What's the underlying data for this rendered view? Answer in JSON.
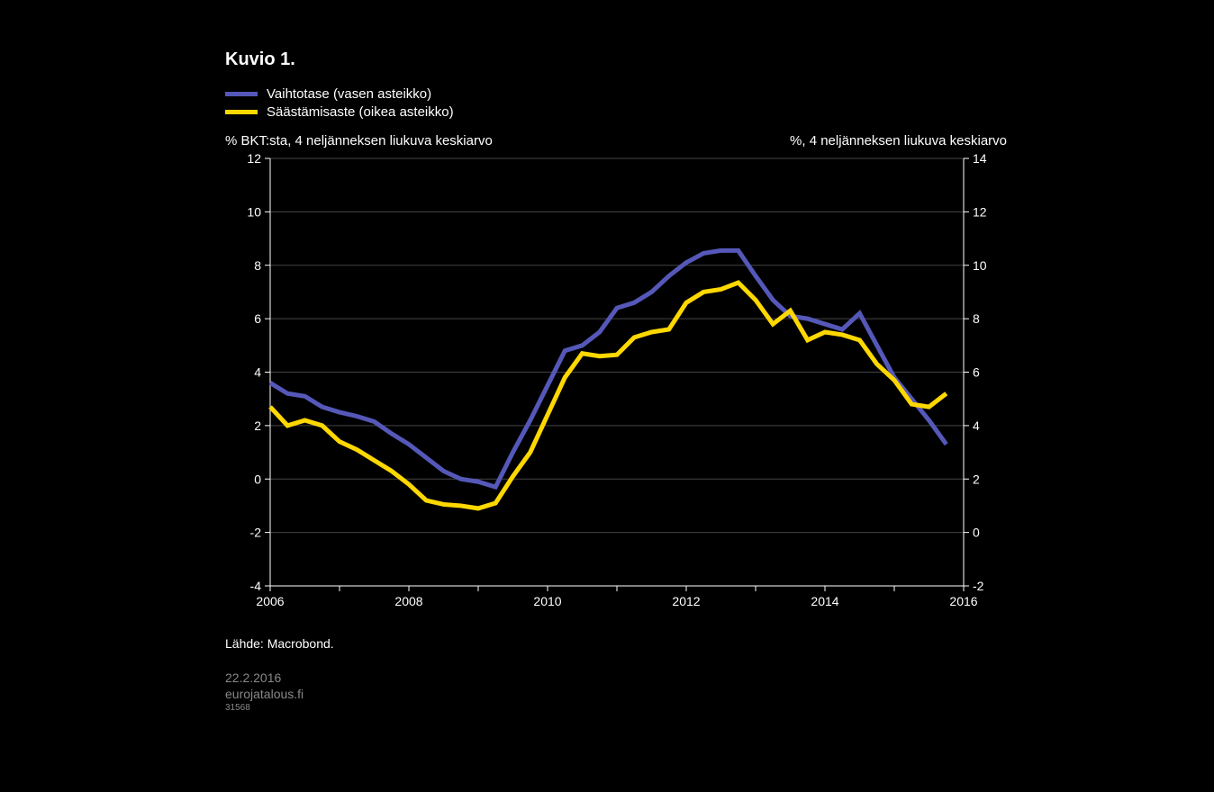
{
  "chart": {
    "type": "line",
    "title": "Kuvio 1.",
    "background_color": "#000000",
    "text_color": "#ffffff",
    "grid_color": "#444444",
    "legend": {
      "items": [
        {
          "label": "Vaihtotase (vasen asteikko)",
          "color": "#5558b8"
        },
        {
          "label": "Säästämisaste (oikea asteikko)",
          "color": "#ffd800"
        }
      ]
    },
    "left_axis": {
      "title": "% BKT:sta, 4 neljänneksen liukuva keskiarvo",
      "min": -4,
      "max": 12,
      "tick_step": 2,
      "ticks": [
        -4,
        -2,
        0,
        2,
        4,
        6,
        8,
        10,
        12
      ]
    },
    "right_axis": {
      "title": "%, 4 neljänneksen liukuva keskiarvo",
      "min": -2,
      "max": 14,
      "tick_step": 2,
      "ticks": [
        -2,
        0,
        2,
        4,
        6,
        8,
        10,
        12,
        14
      ]
    },
    "x_axis": {
      "min": 0,
      "max": 40,
      "labels": [
        {
          "pos": 0,
          "text": "2006"
        },
        {
          "pos": 8,
          "text": "2008"
        },
        {
          "pos": 16,
          "text": "2010"
        },
        {
          "pos": 24,
          "text": "2012"
        },
        {
          "pos": 32,
          "text": "2014"
        },
        {
          "pos": 40,
          "text": "2016"
        }
      ],
      "year_ticks": [
        0,
        4,
        8,
        12,
        16,
        20,
        24,
        28,
        32,
        36,
        40
      ]
    },
    "series": [
      {
        "name": "Vaihtotase",
        "color": "#5558b8",
        "axis": "left",
        "stroke_width": 5,
        "data": [
          3.6,
          3.2,
          3.1,
          2.7,
          2.5,
          2.35,
          2.15,
          1.7,
          1.3,
          0.8,
          0.3,
          0.0,
          -0.1,
          -0.3,
          1.0,
          2.2,
          3.5,
          4.8,
          5.0,
          5.5,
          6.4,
          6.6,
          7.0,
          7.6,
          8.1,
          8.45,
          8.55,
          8.55,
          7.6,
          6.7,
          6.1,
          6.0,
          5.8,
          5.6,
          6.2,
          5.0,
          3.8,
          3.0,
          2.2,
          1.3
        ]
      },
      {
        "name": "Säästämisaste",
        "color": "#ffd800",
        "axis": "right",
        "stroke_width": 5,
        "data": [
          4.7,
          4.0,
          4.2,
          4.0,
          3.4,
          3.1,
          2.7,
          2.3,
          1.8,
          1.2,
          1.05,
          1.0,
          0.9,
          1.1,
          2.1,
          3.0,
          4.4,
          5.8,
          6.7,
          6.6,
          6.65,
          7.3,
          7.5,
          7.6,
          8.6,
          9.0,
          9.1,
          9.35,
          8.7,
          7.8,
          8.3,
          7.2,
          7.5,
          7.4,
          7.2,
          6.3,
          5.7,
          4.8,
          4.7,
          5.2
        ]
      }
    ],
    "source_label": "Lähde:",
    "source_value": "Macrobond.",
    "footer_date": "22.2.2016",
    "footer_site": "eurojatalous.fi",
    "footer_id": "31568"
  }
}
